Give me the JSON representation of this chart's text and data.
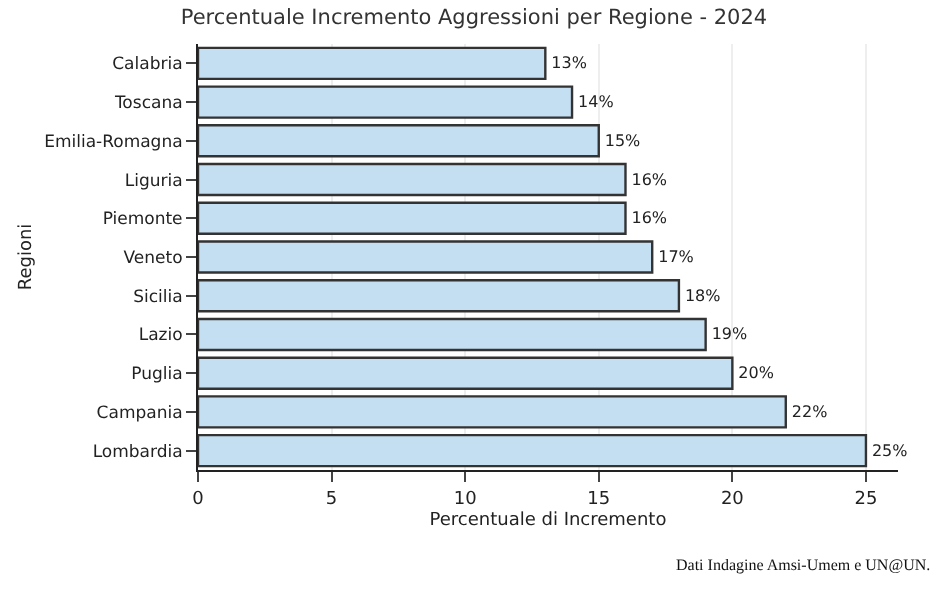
{
  "chart_data": {
    "type": "bar",
    "orientation": "horizontal",
    "title": "Percentuale Incremento Aggressioni per Regione - 2024",
    "xlabel": "Percentuale di Incremento",
    "ylabel": "Regioni",
    "categories": [
      "Calabria",
      "Toscana",
      "Emilia-Romagna",
      "Liguria",
      "Piemonte",
      "Veneto",
      "Sicilia",
      "Lazio",
      "Puglia",
      "Campania",
      "Lombardia"
    ],
    "values": [
      13,
      14,
      15,
      16,
      16,
      17,
      18,
      19,
      20,
      22,
      25
    ],
    "value_labels": [
      "13%",
      "14%",
      "15%",
      "16%",
      "16%",
      "17%",
      "18%",
      "19%",
      "20%",
      "22%",
      "25%"
    ],
    "color": "#c5dff2",
    "xlim": [
      0,
      26.2
    ],
    "xticks": [
      0,
      5,
      10,
      15,
      20,
      25
    ],
    "grid": "x",
    "annotations": [
      "Dati Indagine Amsi-Umem e UN@UN."
    ]
  }
}
